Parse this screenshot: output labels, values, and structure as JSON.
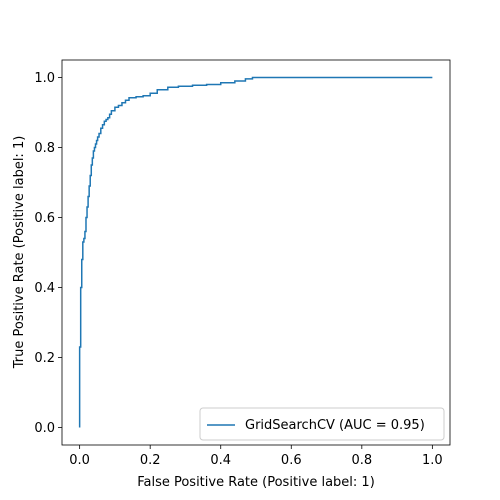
{
  "chart_data": {
    "type": "line",
    "title": "",
    "xlabel": "False Positive Rate (Positive label: 1)",
    "ylabel": "True Positive Rate (Positive label: 1)",
    "xlim": [
      -0.05,
      1.05
    ],
    "ylim": [
      -0.05,
      1.05
    ],
    "xticks": [
      0.0,
      0.2,
      0.4,
      0.6,
      0.8,
      1.0
    ],
    "yticks": [
      0.0,
      0.2,
      0.4,
      0.6,
      0.8,
      1.0
    ],
    "xtick_labels": [
      "0.0",
      "0.2",
      "0.4",
      "0.6",
      "0.8",
      "1.0"
    ],
    "ytick_labels": [
      "0.0",
      "0.2",
      "0.4",
      "0.6",
      "0.8",
      "1.0"
    ],
    "grid": false,
    "legend": {
      "position": "lower-right"
    },
    "series": [
      {
        "name": "GridSearchCV (AUC = 0.95)",
        "color": "#1f77b4",
        "x": [
          0.0,
          0.0,
          0.003,
          0.003,
          0.006,
          0.006,
          0.009,
          0.009,
          0.012,
          0.012,
          0.015,
          0.015,
          0.018,
          0.018,
          0.021,
          0.021,
          0.024,
          0.024,
          0.027,
          0.027,
          0.03,
          0.03,
          0.033,
          0.033,
          0.036,
          0.036,
          0.039,
          0.039,
          0.042,
          0.042,
          0.045,
          0.045,
          0.048,
          0.048,
          0.051,
          0.051,
          0.055,
          0.055,
          0.06,
          0.06,
          0.065,
          0.065,
          0.07,
          0.07,
          0.075,
          0.075,
          0.08,
          0.08,
          0.085,
          0.085,
          0.09,
          0.09,
          0.1,
          0.1,
          0.11,
          0.11,
          0.12,
          0.12,
          0.13,
          0.13,
          0.14,
          0.14,
          0.16,
          0.16,
          0.18,
          0.18,
          0.2,
          0.2,
          0.22,
          0.22,
          0.25,
          0.25,
          0.28,
          0.28,
          0.32,
          0.32,
          0.36,
          0.36,
          0.4,
          0.4,
          0.44,
          0.44,
          0.47,
          0.47,
          0.49,
          0.49,
          1.0
        ],
        "y": [
          0.0,
          0.23,
          0.23,
          0.4,
          0.4,
          0.48,
          0.48,
          0.53,
          0.53,
          0.54,
          0.54,
          0.56,
          0.56,
          0.6,
          0.6,
          0.63,
          0.63,
          0.66,
          0.66,
          0.69,
          0.69,
          0.72,
          0.72,
          0.75,
          0.75,
          0.77,
          0.77,
          0.79,
          0.79,
          0.8,
          0.8,
          0.81,
          0.81,
          0.82,
          0.82,
          0.83,
          0.83,
          0.84,
          0.84,
          0.855,
          0.855,
          0.865,
          0.865,
          0.875,
          0.875,
          0.88,
          0.88,
          0.885,
          0.885,
          0.895,
          0.895,
          0.905,
          0.905,
          0.915,
          0.915,
          0.92,
          0.92,
          0.928,
          0.928,
          0.935,
          0.935,
          0.942,
          0.942,
          0.945,
          0.945,
          0.948,
          0.948,
          0.955,
          0.955,
          0.965,
          0.965,
          0.972,
          0.972,
          0.975,
          0.975,
          0.978,
          0.978,
          0.98,
          0.98,
          0.985,
          0.985,
          0.99,
          0.99,
          0.996,
          0.996,
          1.0,
          1.0
        ]
      }
    ]
  }
}
